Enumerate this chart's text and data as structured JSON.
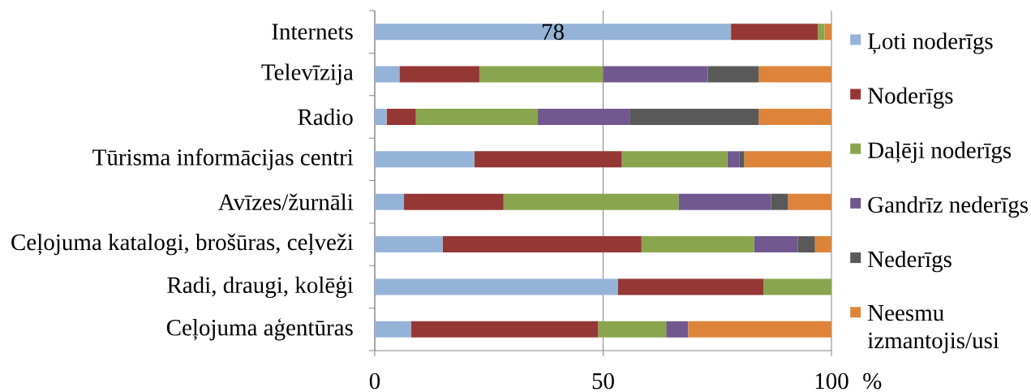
{
  "chart_data": {
    "type": "bar",
    "orientation": "horizontal",
    "stacked": true,
    "categories": [
      "Internets",
      "Televīzija",
      "Radio",
      "Tūrisma informācijas centri",
      "Avīzes/žurnāli",
      "Ceļojuma katalogi, brošūras, ceļveži",
      "Radi, draugi, kolēģi",
      "Ceļojuma aģentūras"
    ],
    "series": [
      {
        "name": "Ļoti noderīgs",
        "color": "#95b3d7",
        "values": [
          78,
          5.4,
          2.6,
          21.8,
          6.4,
          14.9,
          53.2,
          8.0
        ],
        "value_labels": [
          "78",
          null,
          null,
          null,
          null,
          null,
          null,
          null
        ]
      },
      {
        "name": "Noderīgs",
        "color": "#953735",
        "values": [
          19,
          17.5,
          6.4,
          32.3,
          21.8,
          43.5,
          31.9,
          40.9
        ]
      },
      {
        "name": "Daļēji noderīgs",
        "color": "#89a54e",
        "values": [
          1.5,
          27.1,
          26.7,
          23.1,
          38.4,
          24.7,
          14.9,
          14.9
        ]
      },
      {
        "name": "Gandrīz nederīgs",
        "color": "#71588f",
        "values": [
          0,
          22.9,
          20.1,
          2.7,
          20.2,
          9.5,
          0,
          4.8
        ]
      },
      {
        "name": "Nederīgs",
        "color": "#595959",
        "values": [
          0,
          11.2,
          28.3,
          1.0,
          3.7,
          3.8,
          0,
          0
        ]
      },
      {
        "name": "Neesmu izmantojis/usi",
        "color": "#dd843a",
        "values": [
          1.5,
          15.9,
          15.9,
          19.1,
          9.5,
          3.6,
          0,
          31.4
        ]
      }
    ],
    "xlim": [
      0,
      100
    ],
    "xticks": [
      0,
      50,
      100
    ],
    "xlabel": "%",
    "grid": "x",
    "legend": "right"
  }
}
